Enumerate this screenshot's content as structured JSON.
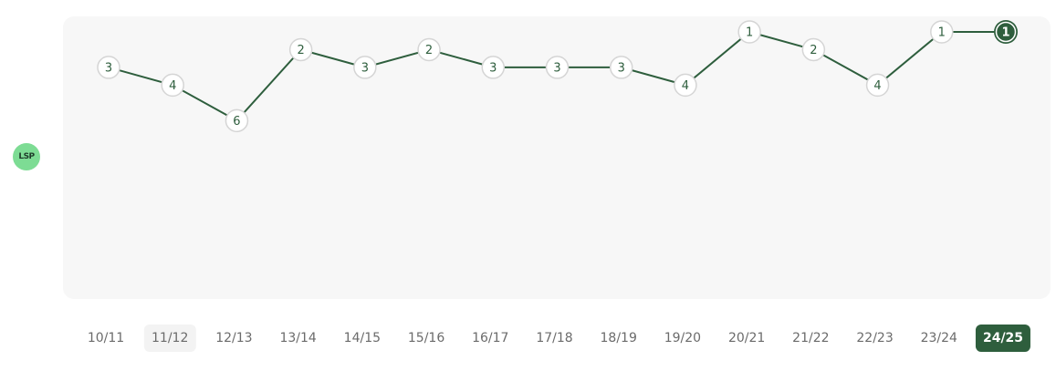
{
  "logo": {
    "text": "LSP",
    "bg_color": "#7ddc94"
  },
  "colors": {
    "line": "#2e5e3d",
    "marker_fill": "#ffffff",
    "marker_stroke": "#d5d5d5",
    "marker_text": "#2e5e3d",
    "selected_fill": "#2e5e3d",
    "selected_text": "#ffffff",
    "plot_bg": "#f7f7f7"
  },
  "chart_data": {
    "type": "line",
    "x": [
      "10/11",
      "11/12",
      "12/13",
      "13/14",
      "14/15",
      "15/16",
      "16/17",
      "17/18",
      "18/19",
      "19/20",
      "20/21",
      "21/22",
      "22/23",
      "23/24",
      "24/25"
    ],
    "series": [
      {
        "values": [
          3,
          4,
          6,
          2,
          3,
          2,
          3,
          3,
          3,
          4,
          1,
          2,
          4,
          1,
          1
        ]
      }
    ],
    "y_inverted": true,
    "ylim": [
      1,
      16
    ],
    "grid": false,
    "legend": "none",
    "selected_x": "24/25",
    "hovered_x": "11/12"
  }
}
